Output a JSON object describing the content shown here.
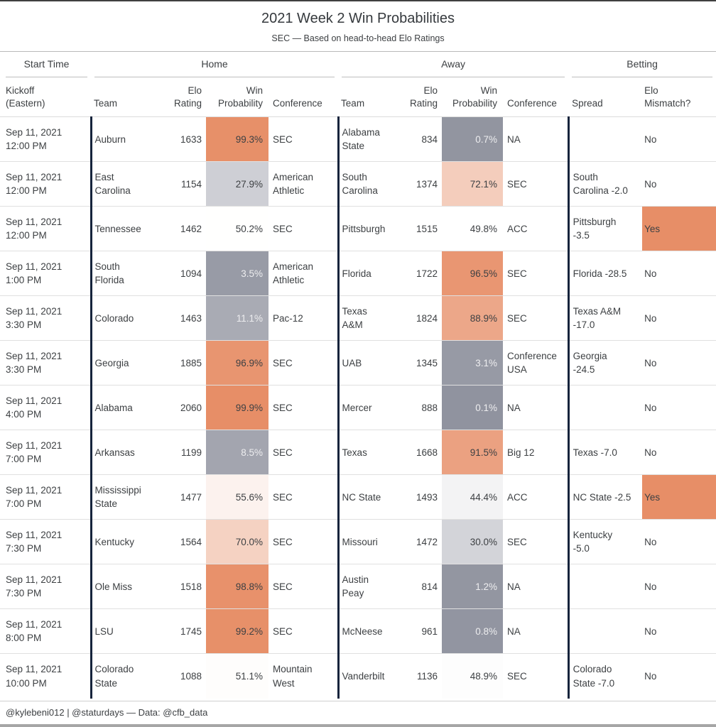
{
  "title": "2021 Week 2 Win Probabilities",
  "subtitle": "SEC — Based on head-to-head Elo Ratings",
  "footer": "@kylebeni012 | @staturdays — Data: @cfb_data",
  "colors": {
    "high_prob_orange": "#E78E67",
    "low_prob_gray": "#90939F",
    "midpoint_white": "#FFFFFF",
    "mismatch_yes_orange": "#E78E67",
    "divider_navy": "#16243C",
    "dark_text": "#3D4043",
    "light_text": "#EDEDEF"
  },
  "groups": [
    "Start Time",
    "Home",
    "Away",
    "Betting"
  ],
  "columns": {
    "kickoff": "Kickoff (Eastern)",
    "team": "Team",
    "elo": "Elo Rating",
    "win_probability": "Win Probability",
    "conference": "Conference",
    "spread": "Spread",
    "elo_mismatch": "Elo Mismatch?"
  },
  "chart_data": {
    "type": "table",
    "title": "2021 Week 2 Win Probabilities",
    "subtitle": "SEC — Based on head-to-head Elo Ratings",
    "win_probability_color_scale": {
      "0": "#90939F",
      "50": "#FFFFFF",
      "100": "#E78E67"
    },
    "low_prob_light_text_threshold": 20,
    "rows": [
      {
        "kickoff": "Sep 11, 2021 12:00 PM",
        "home": {
          "team": "Auburn",
          "elo": 1633,
          "win_prob": 99.3,
          "conference": "SEC"
        },
        "away": {
          "team": "Alabama State",
          "elo": 834,
          "win_prob": 0.7,
          "conference": "NA"
        },
        "spread": "",
        "elo_mismatch": "No"
      },
      {
        "kickoff": "Sep 11, 2021 12:00 PM",
        "home": {
          "team": "East Carolina",
          "elo": 1154,
          "win_prob": 27.9,
          "conference": "American Athletic"
        },
        "away": {
          "team": "South Carolina",
          "elo": 1374,
          "win_prob": 72.1,
          "conference": "SEC"
        },
        "spread": "South Carolina -2.0",
        "elo_mismatch": "No"
      },
      {
        "kickoff": "Sep 11, 2021 12:00 PM",
        "home": {
          "team": "Tennessee",
          "elo": 1462,
          "win_prob": 50.2,
          "conference": "SEC"
        },
        "away": {
          "team": "Pittsburgh",
          "elo": 1515,
          "win_prob": 49.8,
          "conference": "ACC"
        },
        "spread": "Pittsburgh -3.5",
        "elo_mismatch": "Yes"
      },
      {
        "kickoff": "Sep 11, 2021 1:00 PM",
        "home": {
          "team": "South Florida",
          "elo": 1094,
          "win_prob": 3.5,
          "conference": "American Athletic"
        },
        "away": {
          "team": "Florida",
          "elo": 1722,
          "win_prob": 96.5,
          "conference": "SEC"
        },
        "spread": "Florida -28.5",
        "elo_mismatch": "No"
      },
      {
        "kickoff": "Sep 11, 2021 3:30 PM",
        "home": {
          "team": "Colorado",
          "elo": 1463,
          "win_prob": 11.1,
          "conference": "Pac-12"
        },
        "away": {
          "team": "Texas A&M",
          "elo": 1824,
          "win_prob": 88.9,
          "conference": "SEC"
        },
        "spread": "Texas A&M -17.0",
        "elo_mismatch": "No"
      },
      {
        "kickoff": "Sep 11, 2021 3:30 PM",
        "home": {
          "team": "Georgia",
          "elo": 1885,
          "win_prob": 96.9,
          "conference": "SEC"
        },
        "away": {
          "team": "UAB",
          "elo": 1345,
          "win_prob": 3.1,
          "conference": "Conference USA"
        },
        "spread": "Georgia -24.5",
        "elo_mismatch": "No"
      },
      {
        "kickoff": "Sep 11, 2021 4:00 PM",
        "home": {
          "team": "Alabama",
          "elo": 2060,
          "win_prob": 99.9,
          "conference": "SEC"
        },
        "away": {
          "team": "Mercer",
          "elo": 888,
          "win_prob": 0.1,
          "conference": "NA"
        },
        "spread": "",
        "elo_mismatch": "No"
      },
      {
        "kickoff": "Sep 11, 2021 7:00 PM",
        "home": {
          "team": "Arkansas",
          "elo": 1199,
          "win_prob": 8.5,
          "conference": "SEC"
        },
        "away": {
          "team": "Texas",
          "elo": 1668,
          "win_prob": 91.5,
          "conference": "Big 12"
        },
        "spread": "Texas -7.0",
        "elo_mismatch": "No"
      },
      {
        "kickoff": "Sep 11, 2021 7:00 PM",
        "home": {
          "team": "Mississippi State",
          "elo": 1477,
          "win_prob": 55.6,
          "conference": "SEC"
        },
        "away": {
          "team": "NC State",
          "elo": 1493,
          "win_prob": 44.4,
          "conference": "ACC"
        },
        "spread": "NC State -2.5",
        "elo_mismatch": "Yes"
      },
      {
        "kickoff": "Sep 11, 2021 7:30 PM",
        "home": {
          "team": "Kentucky",
          "elo": 1564,
          "win_prob": 70.0,
          "conference": "SEC"
        },
        "away": {
          "team": "Missouri",
          "elo": 1472,
          "win_prob": 30.0,
          "conference": "SEC"
        },
        "spread": "Kentucky -5.0",
        "elo_mismatch": "No"
      },
      {
        "kickoff": "Sep 11, 2021 7:30 PM",
        "home": {
          "team": "Ole Miss",
          "elo": 1518,
          "win_prob": 98.8,
          "conference": "SEC"
        },
        "away": {
          "team": "Austin Peay",
          "elo": 814,
          "win_prob": 1.2,
          "conference": "NA"
        },
        "spread": "",
        "elo_mismatch": "No"
      },
      {
        "kickoff": "Sep 11, 2021 8:00 PM",
        "home": {
          "team": "LSU",
          "elo": 1745,
          "win_prob": 99.2,
          "conference": "SEC"
        },
        "away": {
          "team": "McNeese",
          "elo": 961,
          "win_prob": 0.8,
          "conference": "NA"
        },
        "spread": "",
        "elo_mismatch": "No"
      },
      {
        "kickoff": "Sep 11, 2021 10:00 PM",
        "home": {
          "team": "Colorado State",
          "elo": 1088,
          "win_prob": 51.1,
          "conference": "Mountain West"
        },
        "away": {
          "team": "Vanderbilt",
          "elo": 1136,
          "win_prob": 48.9,
          "conference": "SEC"
        },
        "spread": "Colorado State -7.0",
        "elo_mismatch": "No"
      }
    ]
  }
}
